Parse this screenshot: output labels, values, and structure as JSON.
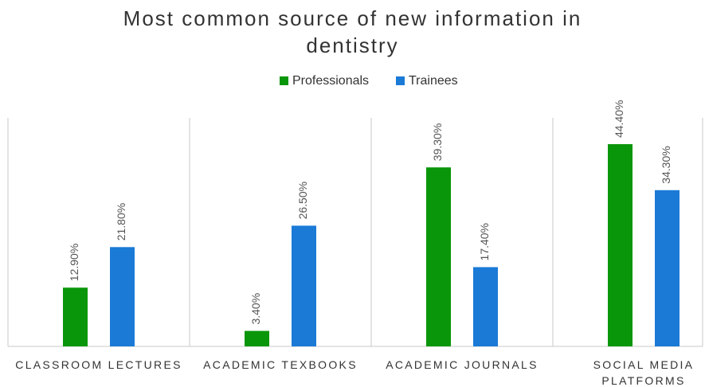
{
  "chart_data": {
    "type": "bar",
    "title": "Most common source of new information in dentistry",
    "categories": [
      "CLASSROOM LECTURES",
      "ACADEMIC TEXBOOKS",
      "ACADEMIC JOURNALS",
      "SOCIAL MEDIA PLATFORMS"
    ],
    "series": [
      {
        "name": "Professionals",
        "color": "#0a960a",
        "values": [
          12.9,
          3.4,
          39.3,
          44.4
        ],
        "value_labels": [
          "12.90%",
          "3.40%",
          "39.30%",
          "44.40%"
        ]
      },
      {
        "name": "Trainees",
        "color": "#1a7ad6",
        "values": [
          21.8,
          26.5,
          17.4,
          34.3
        ],
        "value_labels": [
          "21.80%",
          "26.50%",
          "17.40%",
          "34.30%"
        ]
      }
    ],
    "legend": "top"
  }
}
